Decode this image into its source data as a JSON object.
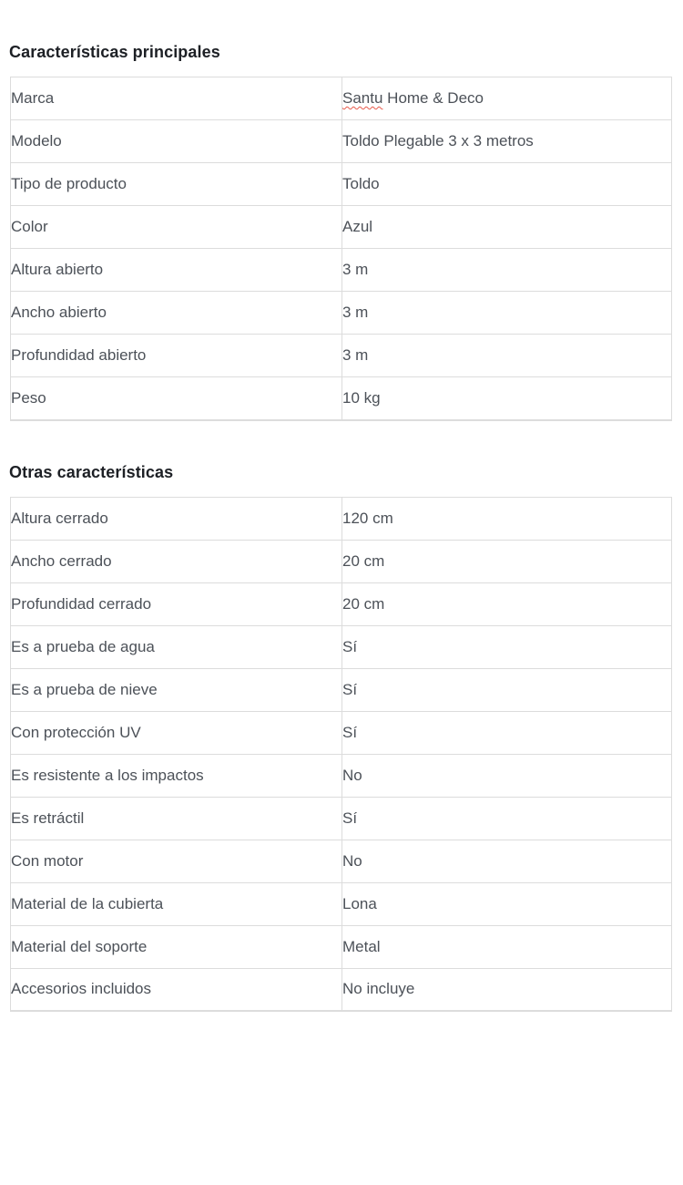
{
  "colors": {
    "heading_text": "#1d2025",
    "cell_text": "#4c5158",
    "table_border": "#dcdcdc",
    "spellcheck_underline": "#e8594a",
    "page_background": "#ffffff"
  },
  "sections": [
    {
      "title": "Características principales",
      "rows": [
        {
          "label": "Marca",
          "value": "Santu Home & Deco",
          "value_spellcheck_word": "Santu",
          "value_rest": " Home & Deco"
        },
        {
          "label": "Modelo",
          "value": "Toldo Plegable 3 x 3 metros"
        },
        {
          "label": "Tipo de producto",
          "value": "Toldo"
        },
        {
          "label": "Color",
          "value": "Azul"
        },
        {
          "label": "Altura abierto",
          "value": "3 m"
        },
        {
          "label": "Ancho abierto",
          "value": "3 m"
        },
        {
          "label": "Profundidad abierto",
          "value": "3 m"
        },
        {
          "label": "Peso",
          "value": "10 kg"
        }
      ]
    },
    {
      "title": "Otras características",
      "rows": [
        {
          "label": "Altura cerrado",
          "value": "120 cm"
        },
        {
          "label": "Ancho cerrado",
          "value": "20 cm"
        },
        {
          "label": "Profundidad cerrado",
          "value": "20 cm"
        },
        {
          "label": "Es a prueba de agua",
          "value": "Sí"
        },
        {
          "label": "Es a prueba de nieve",
          "value": "Sí"
        },
        {
          "label": "Con protección UV",
          "value": "Sí"
        },
        {
          "label": "Es resistente a los impactos",
          "value": "No"
        },
        {
          "label": "Es retráctil",
          "value": "Sí"
        },
        {
          "label": "Con motor",
          "value": "No"
        },
        {
          "label": "Material de la cubierta",
          "value": "Lona"
        },
        {
          "label": "Material del soporte",
          "value": "Metal"
        },
        {
          "label": "Accesorios incluidos",
          "value": "No incluye"
        }
      ]
    }
  ]
}
